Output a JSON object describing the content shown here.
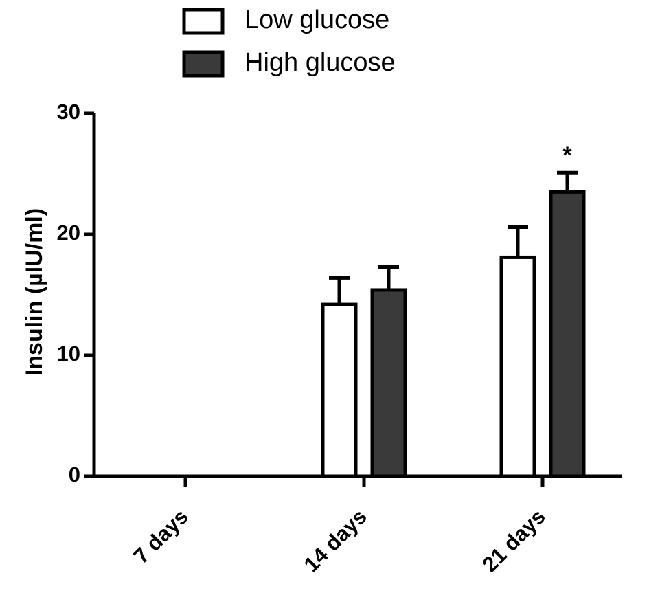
{
  "chart_data": {
    "type": "bar",
    "categories": [
      "7 days",
      "14 days",
      "21 days"
    ],
    "series": [
      {
        "name": "Low glucose",
        "values": [
          null,
          14.2,
          18.1
        ],
        "errors": [
          null,
          2.2,
          2.5
        ],
        "color": "#ffffff"
      },
      {
        "name": "High glucose",
        "values": [
          null,
          15.4,
          23.5
        ],
        "errors": [
          null,
          1.9,
          1.6
        ],
        "color": "#3a3a3a"
      }
    ],
    "annotations": [
      {
        "category": "21 days",
        "series": "High glucose",
        "text": "*"
      }
    ],
    "ylabel": "Insulin (µIU/ml)",
    "xlabel": "",
    "ylim": [
      0,
      30
    ],
    "yticks": [
      "0",
      "10",
      "20",
      "30"
    ],
    "legend_position": "top",
    "grid": false
  }
}
